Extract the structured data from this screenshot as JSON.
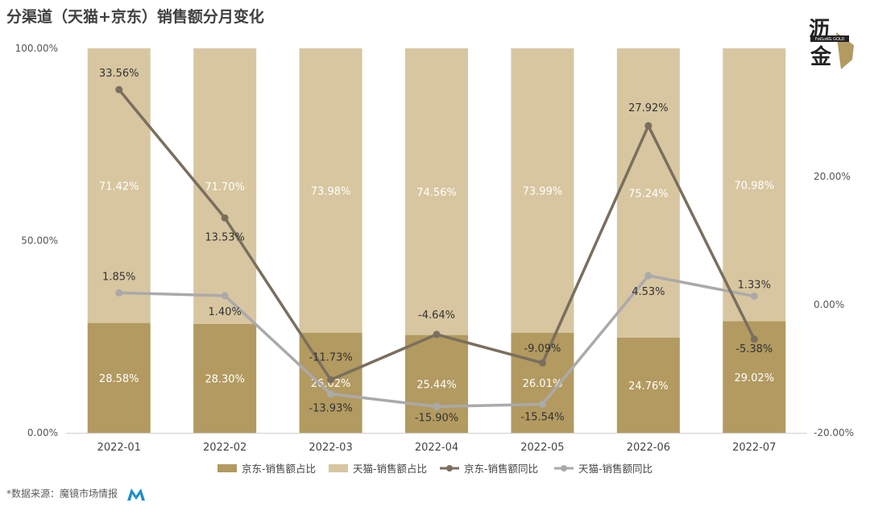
{
  "title": "分渠道（天猫+京东）销售额分月变化",
  "footer": "*数据来源：魔镜市场情报",
  "logo_text": [
    "沥",
    "金"
  ],
  "logo_small": "FINDING GOLD",
  "colors": {
    "jd_bar": "#b29a60",
    "tmall_bar": "#d8c6a0",
    "jd_line": "#7a6f5e",
    "tmall_line": "#aaaaaa"
  },
  "chart_data": {
    "type": "bar",
    "categories": [
      "2022-01",
      "2022-02",
      "2022-03",
      "2022-04",
      "2022-05",
      "2022-06",
      "2022-07"
    ],
    "series": [
      {
        "name": "京东-销售额占比",
        "kind": "bar",
        "axis": "left",
        "values": [
          28.58,
          28.3,
          26.02,
          25.44,
          26.01,
          24.76,
          29.02
        ],
        "labels": [
          "28.58%",
          "28.30%",
          "26.02%",
          "25.44%",
          "26.01%",
          "24.76%",
          "29.02%"
        ]
      },
      {
        "name": "天猫-销售额占比",
        "kind": "bar",
        "axis": "left",
        "values": [
          71.42,
          71.7,
          73.98,
          74.56,
          73.99,
          75.24,
          70.98
        ],
        "labels": [
          "71.42%",
          "71.70%",
          "73.98%",
          "74.56%",
          "73.99%",
          "75.24%",
          "70.98%"
        ]
      },
      {
        "name": "京东-销售额同比",
        "kind": "line",
        "axis": "right",
        "values": [
          33.56,
          13.53,
          -11.73,
          -4.64,
          -9.09,
          27.92,
          -5.38
        ],
        "labels": [
          "33.56%",
          "13.53%",
          "-11.73%",
          "-4.64%",
          "-9.09%",
          "27.92%",
          "-5.38%"
        ]
      },
      {
        "name": "天猫-销售额同比",
        "kind": "line",
        "axis": "right",
        "values": [
          1.85,
          1.4,
          -13.93,
          -15.9,
          -15.54,
          4.53,
          1.33
        ],
        "labels": [
          "1.85%",
          "1.40%",
          "-13.93%",
          "-15.90%",
          "-15.54%",
          "4.53%",
          "1.33%"
        ]
      }
    ],
    "y_left": {
      "ylim": [
        0,
        100
      ],
      "ticks": [
        "0.00%",
        "50.00%",
        "100.00%"
      ]
    },
    "y_right": {
      "ylim": [
        -20,
        40
      ],
      "ticks": [
        "-20.00%",
        "0.00%",
        "20.00%"
      ]
    },
    "stacked": true,
    "legend_position": "bottom",
    "grid": false
  }
}
